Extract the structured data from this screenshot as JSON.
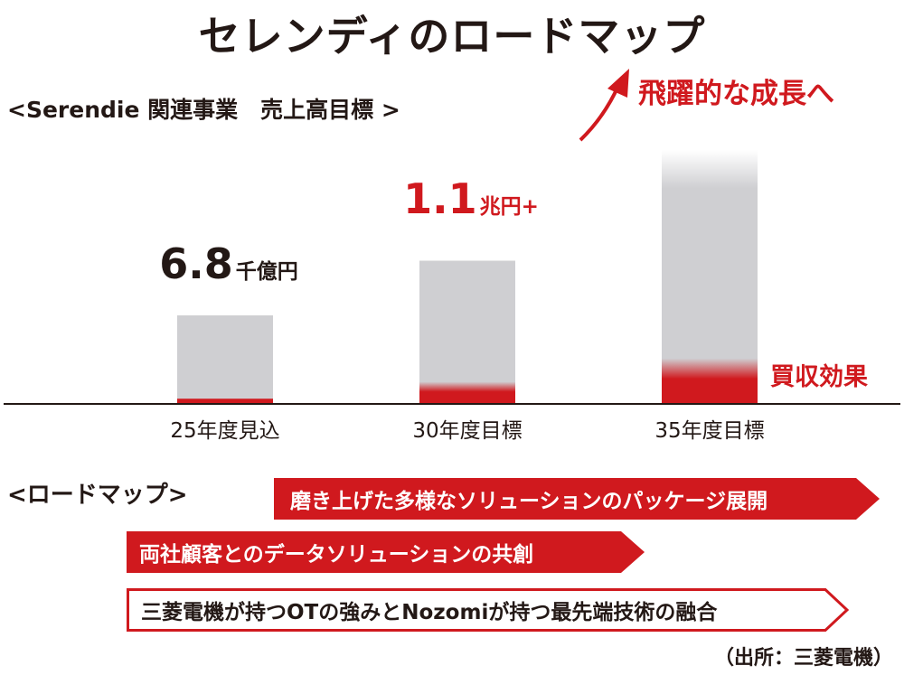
{
  "title": "セレンディのロードマップ",
  "subtitle": "<Serendie 関連事業　売上高目標 >",
  "chart_data": {
    "type": "bar",
    "categories": [
      "25年度見込",
      "30年度目標",
      "35年度目標"
    ],
    "unit": "兆円",
    "series": [
      {
        "values": [
          0.68,
          1.1,
          1.95
        ]
      },
      {
        "name": "買収効果",
        "values": [
          0.04,
          0.17,
          0.35
        ]
      }
    ],
    "ylim": [
      0,
      2.2
    ],
    "value_labels": [
      {
        "number": "6.8",
        "unit": "千億円"
      },
      {
        "number": "1.1",
        "unit": "兆円+"
      }
    ],
    "annotations": {
      "growth": "飛躍的な成長へ",
      "acquisition": "買収効果"
    },
    "colors": {
      "bar": "#cfcfd2",
      "red": "#d0191e",
      "text": "#231815"
    }
  },
  "roadmap": {
    "label": "<ロードマップ>",
    "items": [
      {
        "text": "磨き上げた多様なソリューションのパッケージ展開",
        "style": "filled"
      },
      {
        "text": "両社顧客とのデータソリューションの共創",
        "style": "filled"
      },
      {
        "text": "三菱電機が持つOTの強みとNozomiが持つ最先端技術の融合",
        "style": "outline"
      }
    ]
  },
  "source": "（出所：三菱電機）"
}
